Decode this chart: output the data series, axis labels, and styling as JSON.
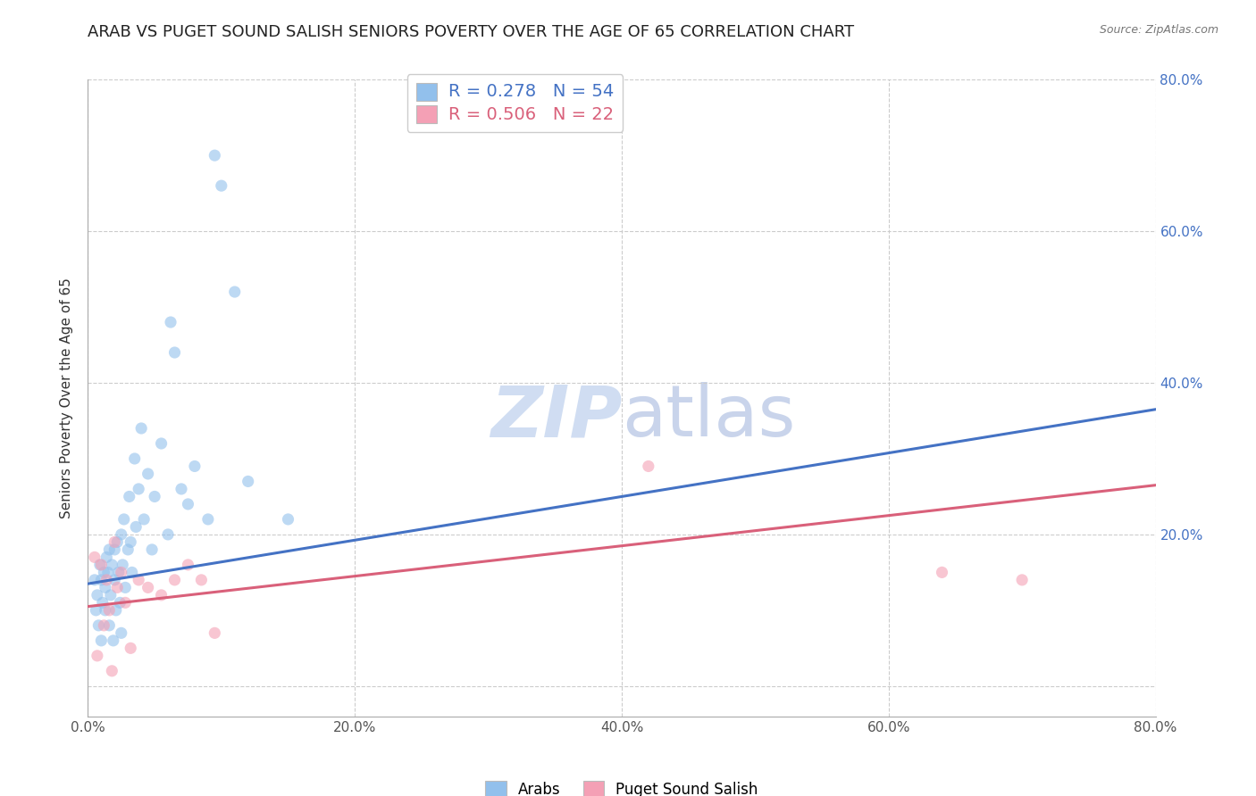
{
  "title": "ARAB VS PUGET SOUND SALISH SENIORS POVERTY OVER THE AGE OF 65 CORRELATION CHART",
  "source": "Source: ZipAtlas.com",
  "ylabel": "Seniors Poverty Over the Age of 65",
  "xlim": [
    0.0,
    0.8
  ],
  "ylim": [
    -0.04,
    0.8
  ],
  "xticks": [
    0.0,
    0.2,
    0.4,
    0.6,
    0.8
  ],
  "yticks": [
    0.0,
    0.2,
    0.4,
    0.6,
    0.8
  ],
  "xticklabels": [
    "0.0%",
    "20.0%",
    "40.0%",
    "60.0%",
    "80.0%"
  ],
  "right_ytick_labels": [
    "80.0%",
    "60.0%",
    "40.0%",
    "20.0%"
  ],
  "right_ytick_positions": [
    0.8,
    0.6,
    0.4,
    0.2
  ],
  "arab_color": "#92C0EC",
  "salish_color": "#F4A0B5",
  "arab_line_color": "#4472C4",
  "salish_line_color": "#D9607A",
  "arab_R": "0.278",
  "arab_N": "54",
  "salish_R": "0.506",
  "salish_N": "22",
  "legend_label_arab": "Arabs",
  "legend_label_salish": "Puget Sound Salish",
  "watermark_zip": "ZIP",
  "watermark_atlas": "atlas",
  "arab_x": [
    0.005,
    0.006,
    0.007,
    0.008,
    0.009,
    0.01,
    0.01,
    0.011,
    0.012,
    0.013,
    0.013,
    0.014,
    0.015,
    0.016,
    0.016,
    0.017,
    0.018,
    0.019,
    0.02,
    0.02,
    0.021,
    0.022,
    0.023,
    0.024,
    0.025,
    0.025,
    0.026,
    0.027,
    0.028,
    0.03,
    0.031,
    0.032,
    0.033,
    0.035,
    0.036,
    0.038,
    0.04,
    0.042,
    0.045,
    0.048,
    0.05,
    0.055,
    0.06,
    0.062,
    0.065,
    0.07,
    0.075,
    0.08,
    0.09,
    0.095,
    0.1,
    0.11,
    0.12,
    0.15
  ],
  "arab_y": [
    0.14,
    0.1,
    0.12,
    0.08,
    0.16,
    0.06,
    0.14,
    0.11,
    0.15,
    0.13,
    0.1,
    0.17,
    0.15,
    0.08,
    0.18,
    0.12,
    0.16,
    0.06,
    0.18,
    0.14,
    0.1,
    0.19,
    0.15,
    0.11,
    0.07,
    0.2,
    0.16,
    0.22,
    0.13,
    0.18,
    0.25,
    0.19,
    0.15,
    0.3,
    0.21,
    0.26,
    0.34,
    0.22,
    0.28,
    0.18,
    0.25,
    0.32,
    0.2,
    0.48,
    0.44,
    0.26,
    0.24,
    0.29,
    0.22,
    0.7,
    0.66,
    0.52,
    0.27,
    0.22
  ],
  "salish_x": [
    0.005,
    0.007,
    0.01,
    0.012,
    0.014,
    0.016,
    0.018,
    0.02,
    0.022,
    0.025,
    0.028,
    0.032,
    0.038,
    0.045,
    0.055,
    0.065,
    0.075,
    0.085,
    0.095,
    0.42,
    0.64,
    0.7
  ],
  "salish_y": [
    0.17,
    0.04,
    0.16,
    0.08,
    0.14,
    0.1,
    0.02,
    0.19,
    0.13,
    0.15,
    0.11,
    0.05,
    0.14,
    0.13,
    0.12,
    0.14,
    0.16,
    0.14,
    0.07,
    0.29,
    0.15,
    0.14
  ],
  "arab_trend_x": [
    0.0,
    0.8
  ],
  "arab_trend_y": [
    0.135,
    0.365
  ],
  "salish_trend_x": [
    0.0,
    0.8
  ],
  "salish_trend_y": [
    0.105,
    0.265
  ],
  "background_color": "#FFFFFF",
  "grid_color": "#CCCCCC",
  "title_fontsize": 13,
  "axis_label_fontsize": 11,
  "tick_fontsize": 11,
  "legend_fontsize": 12,
  "watermark_zip_color": "#C8D8F0",
  "watermark_atlas_color": "#C0CDE8",
  "marker_size": 90,
  "marker_alpha": 0.6,
  "line_width": 2.2
}
